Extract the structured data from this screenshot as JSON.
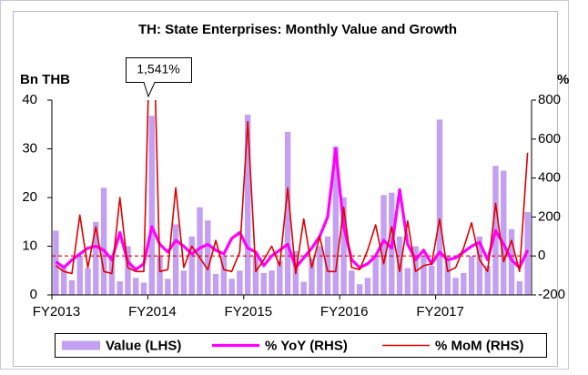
{
  "chart_data": {
    "type": "bar-line",
    "title": "TH: State Enterprises: Monthly Value and Growth",
    "ylabel": "Bn THB",
    "y2label": "%",
    "annotation": "1,541%",
    "categories": [
      "FY2013",
      null,
      null,
      null,
      null,
      null,
      null,
      null,
      null,
      null,
      null,
      null,
      "FY2014",
      null,
      null,
      null,
      null,
      null,
      null,
      null,
      null,
      null,
      null,
      null,
      "FY2015",
      null,
      null,
      null,
      null,
      null,
      null,
      null,
      null,
      null,
      null,
      null,
      "FY2016",
      null,
      null,
      null,
      null,
      null,
      null,
      null,
      null,
      null,
      null,
      null,
      "FY2017",
      null,
      null,
      null,
      null,
      null,
      null,
      null,
      null,
      null,
      null,
      null
    ],
    "series": [
      {
        "name": "Value (LHS)",
        "color": "#c4a0f2",
        "kind": "bar",
        "axis": "y",
        "values": [
          13.2,
          5.5,
          3,
          8,
          5.5,
          15,
          22,
          8,
          2.8,
          10,
          3.5,
          2.5,
          36.8,
          8,
          3.3,
          14.5,
          5,
          12,
          18,
          15.3,
          4.3,
          8,
          3.3,
          5,
          37,
          8,
          4.5,
          5,
          7,
          33.5,
          9,
          2.7,
          7.5,
          10,
          12,
          30.5,
          20,
          5,
          2.2,
          3.5,
          8,
          20.5,
          21,
          12,
          5.5,
          10,
          8,
          6,
          36,
          8,
          3.5,
          4.5,
          8,
          12,
          6,
          26.5,
          25.5,
          13.5,
          2.8,
          17
        ]
      },
      {
        "name": "% YoY (RHS)",
        "color": "#ff00ff",
        "kind": "line",
        "axis": "y2",
        "values": [
          -30,
          -60,
          -20,
          10,
          40,
          50,
          30,
          -20,
          120,
          -30,
          -70,
          -40,
          150,
          60,
          20,
          80,
          50,
          10,
          40,
          60,
          30,
          10,
          90,
          120,
          40,
          20,
          -50,
          0,
          30,
          60,
          -60,
          -10,
          40,
          100,
          200,
          550,
          150,
          -20,
          -60,
          -40,
          0,
          80,
          40,
          340,
          60,
          -20,
          30,
          -40,
          20,
          -20,
          -10,
          20,
          50,
          70,
          -20,
          130,
          60,
          -20,
          -60,
          30
        ]
      },
      {
        "name": "% MoM (RHS)",
        "color": "#e00000",
        "kind": "line",
        "axis": "y2",
        "values": [
          -50,
          -80,
          -90,
          210,
          -60,
          150,
          -80,
          -90,
          300,
          -60,
          -80,
          -80,
          1541,
          -80,
          -70,
          350,
          -60,
          50,
          -10,
          -70,
          80,
          -70,
          -80,
          20,
          690,
          -80,
          -20,
          50,
          -50,
          350,
          -90,
          190,
          -60,
          100,
          -80,
          -80,
          250,
          -60,
          -70,
          30,
          160,
          -40,
          150,
          -80,
          180,
          -80,
          -50,
          -40,
          190,
          -80,
          -60,
          40,
          170,
          -20,
          -80,
          270,
          -30,
          80,
          -80,
          530
        ]
      }
    ],
    "ylim": [
      0,
      40
    ],
    "yticks": [
      0,
      10,
      20,
      30,
      40
    ],
    "y2lim": [
      -200,
      800
    ],
    "y2ticks": [
      -200,
      0,
      200,
      400,
      600,
      800
    ],
    "legend": "bottom"
  }
}
